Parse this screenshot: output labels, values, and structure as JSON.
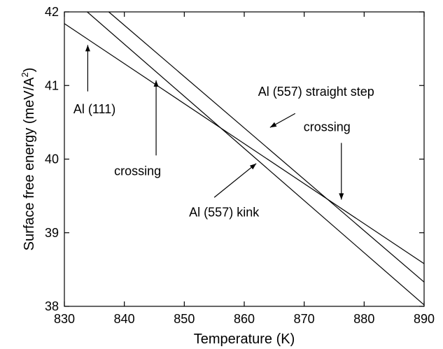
{
  "chart_data": {
    "type": "line",
    "xlabel": "Temperature (K)",
    "ylabel_main": "Surface free energy (meV/A",
    "ylabel_sup": "2",
    "ylabel_close": ")",
    "xlim": [
      830,
      890
    ],
    "ylim": [
      38,
      42
    ],
    "x_ticks": [
      "830",
      "840",
      "850",
      "860",
      "870",
      "880",
      "890"
    ],
    "y_ticks": [
      "38",
      "39",
      "40",
      "41",
      "42"
    ],
    "grid": false,
    "series": [
      {
        "x": [
          830,
          890
        ],
        "y": [
          41.84,
          38.58
        ]
      },
      {
        "x": [
          833.8,
          890
        ],
        "y": [
          42.0,
          38.02
        ]
      },
      {
        "x": [
          837.4,
          890
        ],
        "y": [
          42.0,
          38.33
        ]
      }
    ],
    "annotations": [
      {
        "text": "Al (111)",
        "x": 831.5,
        "y": 40.62,
        "arrow_from": [
          833.9,
          40.92
        ],
        "arrow_to": [
          833.9,
          41.55
        ]
      },
      {
        "text": "crossing",
        "x": 838.3,
        "y": 39.78,
        "arrow_from": [
          845.3,
          40.05
        ],
        "arrow_to": [
          845.3,
          41.07
        ]
      },
      {
        "text": "Al (557) straight step",
        "x": 862.3,
        "y": 40.86,
        "arrow_from": [
          868.5,
          40.62
        ],
        "arrow_to": [
          864.3,
          40.43
        ]
      },
      {
        "text": "crossing",
        "x": 869.9,
        "y": 40.38,
        "arrow_from": [
          876.2,
          40.22
        ],
        "arrow_to": [
          876.2,
          39.45
        ]
      },
      {
        "text": "Al (557) kink",
        "x": 850.8,
        "y": 39.22,
        "arrow_from": [
          855.0,
          39.48
        ],
        "arrow_to": [
          862.0,
          39.94
        ]
      }
    ]
  }
}
